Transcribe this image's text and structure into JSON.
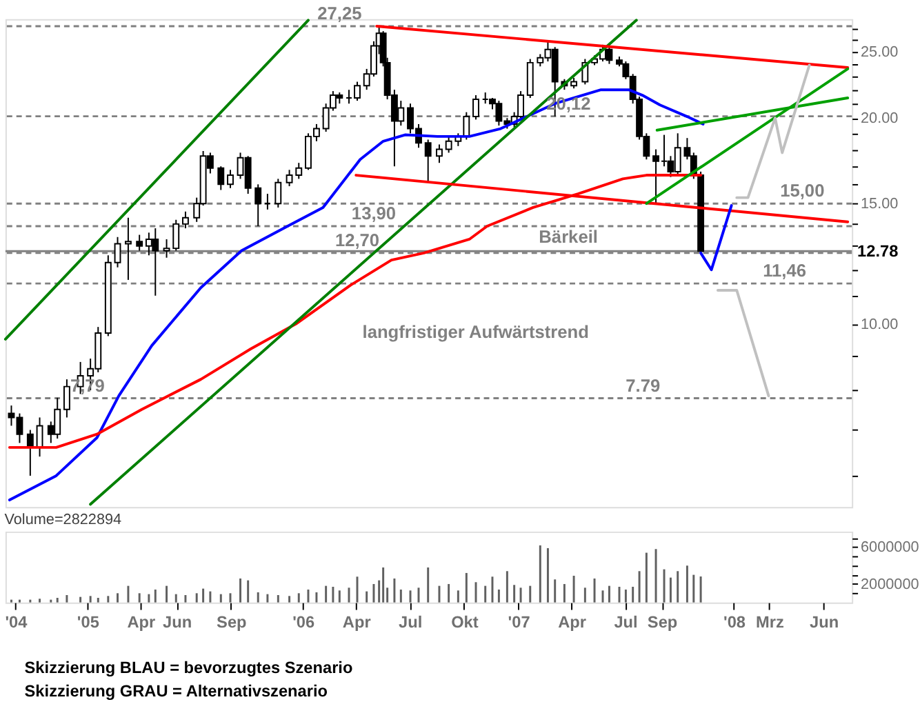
{
  "chart_data": [
    {
      "type": "candlestick",
      "color": "#000000",
      "log": true,
      "grid": false,
      "tick_labels": "y",
      "xlim": [
        "2004-08-15",
        "2008-07-19"
      ],
      "ylim": [
        5.4,
        27.9
      ],
      "yticks": [
        {
          "value": 6,
          "label": null
        },
        {
          "value": 7,
          "label": null
        },
        {
          "value": 8,
          "label": null
        },
        {
          "value": 9,
          "label": null
        },
        {
          "value": 10,
          "label": "10.00"
        },
        {
          "value": 11,
          "label": null
        },
        {
          "value": 12,
          "label": null
        },
        {
          "value": 13,
          "label": null
        },
        {
          "value": 14,
          "label": null
        },
        {
          "value": 15,
          "label": "15.00"
        },
        {
          "value": 16,
          "label": null
        },
        {
          "value": 17,
          "label": null
        },
        {
          "value": 18,
          "label": null
        },
        {
          "value": 19,
          "label": null
        },
        {
          "value": 20,
          "label": "20.00"
        },
        {
          "value": 21,
          "label": null
        },
        {
          "value": 22,
          "label": null
        },
        {
          "value": 23,
          "label": null
        },
        {
          "value": 24,
          "label": null
        },
        {
          "value": 25,
          "label": "25.00"
        },
        {
          "value": 26,
          "label": null
        },
        {
          "value": 27,
          "label": null
        }
      ],
      "x": [
        "2004-08-25",
        "2004-09-08",
        "2004-09-26",
        "2004-10-12",
        "2004-10-31",
        "2004-11-11",
        "2004-11-27",
        "2004-12-20",
        "2005-01-06",
        "2005-01-19",
        "2005-02-05",
        "2005-02-21",
        "2005-03-11",
        "2005-03-30",
        "2005-04-15",
        "2005-04-26",
        "2005-05-15",
        "2005-05-31",
        "2005-06-16",
        "2005-07-05",
        "2005-07-16",
        "2005-07-28",
        "2005-08-15",
        "2005-08-31",
        "2005-09-17",
        "2005-09-30",
        "2005-10-17",
        "2005-11-02",
        "2005-11-20",
        "2005-12-09",
        "2005-12-25",
        "2006-01-10",
        "2006-01-24",
        "2006-02-09",
        "2006-02-21",
        "2006-03-04",
        "2006-03-20",
        "2006-04-03",
        "2006-04-19",
        "2006-05-01",
        "2006-05-10",
        "2006-05-17",
        "2006-05-24",
        "2006-06-05",
        "2006-06-16",
        "2006-07-02",
        "2006-07-16",
        "2006-08-01",
        "2006-08-20",
        "2006-09-05",
        "2006-09-21",
        "2006-10-05",
        "2006-10-21",
        "2006-11-06",
        "2006-11-18",
        "2006-11-29",
        "2006-12-13",
        "2006-12-25",
        "2007-01-05",
        "2007-01-21",
        "2007-02-07",
        "2007-02-20",
        "2007-03-04",
        "2007-03-20",
        "2007-04-05",
        "2007-04-24",
        "2007-05-10",
        "2007-05-24",
        "2007-06-04",
        "2007-06-21",
        "2007-07-02",
        "2007-07-14",
        "2007-07-25",
        "2007-08-06",
        "2007-08-22",
        "2007-09-05",
        "2007-09-16",
        "2007-09-28",
        "2007-10-14",
        "2007-10-25",
        "2007-11-06"
      ],
      "ohlc": [
        [
          7.4,
          7.6,
          7.1,
          7.3
        ],
        [
          7.3,
          7.4,
          6.7,
          6.9
        ],
        [
          6.9,
          7.0,
          6.0,
          6.6
        ],
        [
          6.6,
          7.3,
          6.4,
          7.1
        ],
        [
          7.1,
          7.2,
          6.7,
          6.9
        ],
        [
          6.9,
          7.8,
          6.8,
          7.5
        ],
        [
          7.5,
          8.3,
          7.3,
          8.1
        ],
        [
          8.1,
          8.8,
          7.9,
          8.4
        ],
        [
          8.4,
          8.9,
          8.0,
          8.6
        ],
        [
          8.6,
          9.9,
          8.5,
          9.7
        ],
        [
          9.7,
          12.6,
          9.6,
          12.3
        ],
        [
          12.3,
          13.4,
          12.1,
          13.1
        ],
        [
          13.1,
          14.3,
          11.6,
          13.2
        ],
        [
          13.2,
          13.5,
          12.8,
          13.0
        ],
        [
          13.0,
          13.6,
          12.6,
          13.3
        ],
        [
          13.3,
          13.8,
          11.0,
          12.8
        ],
        [
          12.8,
          13.3,
          12.5,
          12.9
        ],
        [
          12.9,
          14.2,
          12.8,
          14.0
        ],
        [
          14.0,
          14.6,
          13.8,
          14.3
        ],
        [
          14.3,
          15.3,
          14.1,
          15.0
        ],
        [
          15.0,
          17.9,
          14.9,
          17.6
        ],
        [
          17.6,
          17.8,
          16.6,
          16.9
        ],
        [
          16.9,
          17.0,
          15.7,
          16.0
        ],
        [
          16.0,
          16.8,
          15.8,
          16.5
        ],
        [
          16.5,
          17.8,
          16.3,
          17.5
        ],
        [
          17.5,
          17.6,
          15.5,
          15.8
        ],
        [
          15.8,
          16.0,
          13.9,
          15.0
        ],
        [
          15.0,
          15.5,
          14.7,
          15.0
        ],
        [
          15.0,
          16.3,
          14.8,
          16.1
        ],
        [
          16.1,
          16.8,
          15.9,
          16.5
        ],
        [
          16.5,
          17.2,
          16.3,
          16.9
        ],
        [
          16.9,
          19.0,
          16.8,
          18.8
        ],
        [
          18.8,
          19.6,
          18.5,
          19.3
        ],
        [
          19.3,
          21.0,
          19.1,
          20.7
        ],
        [
          20.7,
          21.9,
          20.5,
          21.6
        ],
        [
          21.6,
          21.8,
          21.0,
          21.4
        ],
        [
          21.4,
          22.0,
          21.0,
          21.4
        ],
        [
          21.4,
          22.6,
          21.2,
          22.3
        ],
        [
          22.3,
          23.6,
          22.0,
          23.2
        ],
        [
          23.2,
          25.9,
          23.0,
          25.5
        ],
        [
          25.5,
          27.25,
          24.8,
          26.6
        ],
        [
          26.6,
          26.8,
          23.8,
          24.1
        ],
        [
          24.1,
          24.5,
          21.3,
          21.6
        ],
        [
          21.6,
          22.0,
          17.0,
          19.8
        ],
        [
          19.8,
          21.2,
          19.5,
          20.7
        ],
        [
          20.7,
          21.0,
          19.0,
          19.3
        ],
        [
          19.3,
          19.6,
          18.1,
          18.4
        ],
        [
          18.4,
          18.6,
          16.1,
          17.6
        ],
        [
          17.6,
          18.3,
          17.2,
          18.0
        ],
        [
          18.0,
          18.8,
          17.8,
          18.5
        ],
        [
          18.5,
          19.0,
          18.2,
          18.8
        ],
        [
          18.8,
          20.4,
          18.6,
          20.1
        ],
        [
          20.1,
          21.6,
          19.9,
          21.3
        ],
        [
          21.3,
          21.8,
          21.0,
          21.3
        ],
        [
          21.3,
          21.4,
          20.6,
          21.0
        ],
        [
          21.0,
          21.2,
          19.5,
          19.8
        ],
        [
          19.8,
          20.0,
          19.3,
          19.6
        ],
        [
          19.6,
          20.4,
          19.4,
          20.1
        ],
        [
          20.1,
          21.9,
          20.0,
          21.6
        ],
        [
          21.6,
          24.4,
          21.4,
          24.1
        ],
        [
          24.1,
          24.8,
          23.8,
          24.5
        ],
        [
          24.5,
          26.0,
          24.2,
          25.2
        ],
        [
          25.2,
          25.4,
          20.12,
          22.6
        ],
        [
          22.6,
          22.8,
          22.0,
          22.3
        ],
        [
          22.3,
          22.9,
          22.1,
          22.6
        ],
        [
          22.6,
          24.4,
          22.4,
          24.1
        ],
        [
          24.1,
          24.7,
          23.9,
          24.4
        ],
        [
          24.4,
          25.6,
          24.2,
          25.2
        ],
        [
          25.2,
          25.5,
          24.0,
          24.3
        ],
        [
          24.3,
          24.6,
          23.8,
          24.0
        ],
        [
          24.0,
          24.2,
          22.8,
          23.0
        ],
        [
          23.0,
          23.2,
          21.0,
          21.3
        ],
        [
          21.3,
          21.5,
          18.6,
          18.8
        ],
        [
          18.8,
          19.0,
          17.4,
          17.6
        ],
        [
          17.6,
          18.0,
          15.0,
          17.3
        ],
        [
          17.3,
          18.9,
          17.0,
          17.3
        ],
        [
          17.3,
          17.6,
          16.4,
          16.7
        ],
        [
          16.7,
          19.0,
          16.5,
          18.1
        ],
        [
          18.1,
          18.7,
          17.4,
          17.6
        ],
        [
          17.6,
          17.8,
          16.3,
          16.5
        ],
        [
          16.5,
          16.7,
          12.7,
          12.78
        ]
      ],
      "series": [
        {
          "type": "line",
          "color": "#0000ff",
          "x": [
            "2004-08-22",
            "2004-11-09",
            "2005-01-17",
            "2005-02-23",
            "2005-04-20",
            "2005-07-12",
            "2005-09-19",
            "2005-12-06",
            "2006-02-04",
            "2006-04-08",
            "2006-05-17",
            "2006-06-23",
            "2006-08-17",
            "2006-10-10",
            "2006-12-02",
            "2007-03-04",
            "2007-05-21",
            "2007-07-07",
            "2007-07-30",
            "2007-08-29",
            "2007-10-14",
            "2007-11-10"
          ],
          "values": [
            5.53,
            6.0,
            6.82,
            7.85,
            9.3,
            11.3,
            12.8,
            13.9,
            14.8,
            17.4,
            18.5,
            18.9,
            18.8,
            18.8,
            19.3,
            21.0,
            22.0,
            22.0,
            21.6,
            20.9,
            20.1,
            19.6
          ]
        },
        {
          "type": "line",
          "color": "#ff0000",
          "x": [
            "2004-08-22",
            "2004-11-09",
            "2005-01-17",
            "2005-04-03",
            "2005-07-12",
            "2005-10-05",
            "2005-12-20",
            "2006-03-23",
            "2006-05-31",
            "2006-07-25",
            "2006-10-10",
            "2006-11-09",
            "2007-01-26",
            "2007-04-12",
            "2007-06-27",
            "2007-08-06",
            "2007-11-06"
          ],
          "values": [
            6.6,
            6.6,
            6.9,
            7.5,
            8.3,
            9.2,
            10.0,
            11.4,
            12.4,
            12.7,
            13.3,
            13.9,
            14.8,
            15.5,
            16.3,
            16.5,
            16.5
          ]
        },
        {
          "type": "line",
          "color": "#008000",
          "x": [
            "2004-08-15",
            "2006-01-10"
          ],
          "values": [
            9.5,
            27.8
          ]
        },
        {
          "type": "line",
          "color": "#008000",
          "x": [
            "2005-01-06",
            "2007-07-20"
          ],
          "values": [
            5.45,
            27.8
          ]
        },
        {
          "type": "line",
          "color": "#ff0000",
          "x": [
            "2006-05-06",
            "2008-07-12"
          ],
          "values": [
            27.25,
            23.7
          ]
        },
        {
          "type": "line",
          "color": "#ff0000",
          "x": [
            "2006-04-01",
            "2008-07-12"
          ],
          "values": [
            16.5,
            14.1
          ]
        },
        {
          "type": "line",
          "color": "#00a000",
          "x": [
            "2007-08-24",
            "2008-07-12"
          ],
          "values": [
            19.2,
            21.4
          ]
        },
        {
          "type": "line",
          "color": "#00a000",
          "x": [
            "2007-08-06",
            "2008-07-12"
          ],
          "values": [
            15.0,
            23.6
          ]
        },
        {
          "type": "line",
          "color": "#0000ff",
          "x": [
            "2007-11-06",
            "2007-11-24",
            "2007-12-28"
          ],
          "values": [
            12.7,
            12.0,
            14.9
          ]
        },
        {
          "type": "line",
          "color": "#c0c0c0",
          "x": [
            "2008-01-06",
            "2008-01-25",
            "2008-03-11",
            "2008-03-23",
            "2008-05-08"
          ],
          "values": [
            15.3,
            15.3,
            20.0,
            17.8,
            23.9
          ]
        },
        {
          "type": "line",
          "color": "#c0c0c0",
          "x": [
            "2007-12-05",
            "2008-01-06",
            "2008-02-29"
          ],
          "values": [
            11.2,
            11.2,
            7.85
          ]
        }
      ],
      "ref_lines": [
        {
          "axis": "y",
          "value": 27.25,
          "color": "#808080",
          "line_style": "dashed"
        },
        {
          "axis": "y",
          "value": 20.12,
          "color": "#808080",
          "line_style": "dashed"
        },
        {
          "axis": "y",
          "value": 15.0,
          "color": "#808080",
          "line_style": "dashed"
        },
        {
          "axis": "y",
          "value": 13.9,
          "color": "#808080",
          "line_style": "dashed"
        },
        {
          "axis": "y",
          "value": 12.7,
          "color": "#808080",
          "line_style": "dashed"
        },
        {
          "axis": "y",
          "value": 12.78,
          "label": "12.78",
          "color": "#808080",
          "line_style": "solid"
        },
        {
          "axis": "y",
          "value": 11.46,
          "color": "#808080",
          "line_style": "dashed"
        },
        {
          "axis": "y",
          "value": 7.79,
          "color": "#808080",
          "line_style": "dashed"
        }
      ],
      "annotations": [
        {
          "text": "27,25",
          "x": "2006-03-04",
          "y": 27.25
        },
        {
          "text": "20,12",
          "x": "2007-03-27",
          "y": 20.12
        },
        {
          "text": "15,00",
          "x": "2008-04-26",
          "y": 15.0
        },
        {
          "text": "13,90",
          "x": "2006-05-01",
          "y": 13.9
        },
        {
          "text": "12,70",
          "x": "2006-04-03",
          "y": 12.7
        },
        {
          "text": "11,46",
          "x": "2008-03-27",
          "y": 11.46
        },
        {
          "text": "7.79",
          "x": "2007-07-31",
          "y": 7.79
        },
        {
          "text": "7,79",
          "x": "2005-01-01",
          "y": 7.79
        },
        "langfristiger Aufwärtstrend",
        "Bärkeil"
      ]
    },
    {
      "type": "bar",
      "title": "Volume=2822894",
      "color": "#606060",
      "grid": false,
      "xlim": [
        "2004-08-15",
        "2008-07-19"
      ],
      "ylim": [
        0,
        7700000
      ],
      "xticks": [
        {
          "value": "2004-09-01",
          "label": "'04"
        },
        {
          "value": "2005-01-01",
          "label": "'05"
        },
        {
          "value": "2005-04-01",
          "label": "Apr"
        },
        {
          "value": "2005-06-01",
          "label": "Jun"
        },
        {
          "value": "2005-09-01",
          "label": "Sep"
        },
        {
          "value": "2006-01-01",
          "label": "'06"
        },
        {
          "value": "2006-04-01",
          "label": "Apr"
        },
        {
          "value": "2006-07-01",
          "label": "Jul"
        },
        {
          "value": "2006-10-01",
          "label": "Okt"
        },
        {
          "value": "2007-01-01",
          "label": "'07"
        },
        {
          "value": "2007-04-01",
          "label": "Apr"
        },
        {
          "value": "2007-07-01",
          "label": "Jul"
        },
        {
          "value": "2007-09-01",
          "label": "Sep"
        },
        {
          "value": "2008-01-01",
          "label": "'08"
        },
        {
          "value": "2008-03-01",
          "label": "Mrz"
        },
        {
          "value": "2008-06-01",
          "label": "Jun"
        }
      ],
      "yticks": [
        {
          "value": 1000000,
          "label": null
        },
        2000000,
        {
          "value": 3000000,
          "label": null
        },
        {
          "value": 4000000,
          "label": null
        },
        {
          "value": 5000000,
          "label": null
        },
        6000000,
        {
          "value": 7000000,
          "label": null
        }
      ],
      "x": [
        "2004-08-25",
        "2004-09-08",
        "2004-09-26",
        "2004-10-12",
        "2004-10-31",
        "2004-11-11",
        "2004-11-27",
        "2004-12-20",
        "2005-01-06",
        "2005-01-19",
        "2005-02-05",
        "2005-02-21",
        "2005-03-11",
        "2005-03-30",
        "2005-04-15",
        "2005-04-26",
        "2005-05-15",
        "2005-05-31",
        "2005-06-16",
        "2005-07-05",
        "2005-07-16",
        "2005-07-28",
        "2005-08-15",
        "2005-08-31",
        "2005-09-17",
        "2005-09-30",
        "2005-10-17",
        "2005-11-02",
        "2005-11-20",
        "2005-12-09",
        "2005-12-25",
        "2006-01-10",
        "2006-01-24",
        "2006-02-09",
        "2006-02-21",
        "2006-03-04",
        "2006-03-20",
        "2006-04-03",
        "2006-04-19",
        "2006-05-01",
        "2006-05-10",
        "2006-05-17",
        "2006-05-24",
        "2006-06-05",
        "2006-06-16",
        "2006-07-02",
        "2006-07-16",
        "2006-08-01",
        "2006-08-20",
        "2006-09-05",
        "2006-09-21",
        "2006-10-05",
        "2006-10-21",
        "2006-11-06",
        "2006-11-18",
        "2006-11-29",
        "2006-12-13",
        "2006-12-25",
        "2007-01-05",
        "2007-01-21",
        "2007-02-07",
        "2007-02-20",
        "2007-03-04",
        "2007-03-20",
        "2007-04-05",
        "2007-04-24",
        "2007-05-10",
        "2007-05-24",
        "2007-06-04",
        "2007-06-21",
        "2007-07-02",
        "2007-07-14",
        "2007-07-25",
        "2007-08-06",
        "2007-08-22",
        "2007-09-05",
        "2007-09-16",
        "2007-09-28",
        "2007-10-14",
        "2007-10-25",
        "2007-11-06"
      ],
      "values": [
        300000,
        300000,
        300000,
        400000,
        300000,
        500000,
        800000,
        600000,
        700000,
        500000,
        700000,
        1000000,
        1800000,
        1000000,
        900000,
        1400000,
        1800000,
        900000,
        800000,
        1000000,
        1500000,
        1200000,
        900000,
        1000000,
        2600000,
        2400000,
        1100000,
        900000,
        800000,
        700000,
        1000000,
        1400000,
        1100000,
        1800000,
        1700000,
        1300000,
        1600000,
        2800000,
        1200000,
        2000000,
        2400000,
        3800000,
        1600000,
        2600000,
        1400000,
        1300000,
        1600000,
        3800000,
        1800000,
        2000000,
        1300000,
        3200000,
        2200000,
        1800000,
        2800000,
        1400000,
        3400000,
        1900000,
        1600000,
        1800000,
        6200000,
        5900000,
        2500000,
        2000000,
        2900000,
        1600000,
        2600000,
        1300000,
        1800000,
        1700000,
        1400000,
        1700000,
        3400000,
        5400000,
        5800000,
        3600000,
        2700000,
        3400000,
        4000000,
        3000000,
        2822894
      ],
      "annotations": [
        "Skizzierung BLAU = bevorzugtes Szenario",
        "Skizzierung GRAU = Alternativszenario"
      ]
    }
  ]
}
